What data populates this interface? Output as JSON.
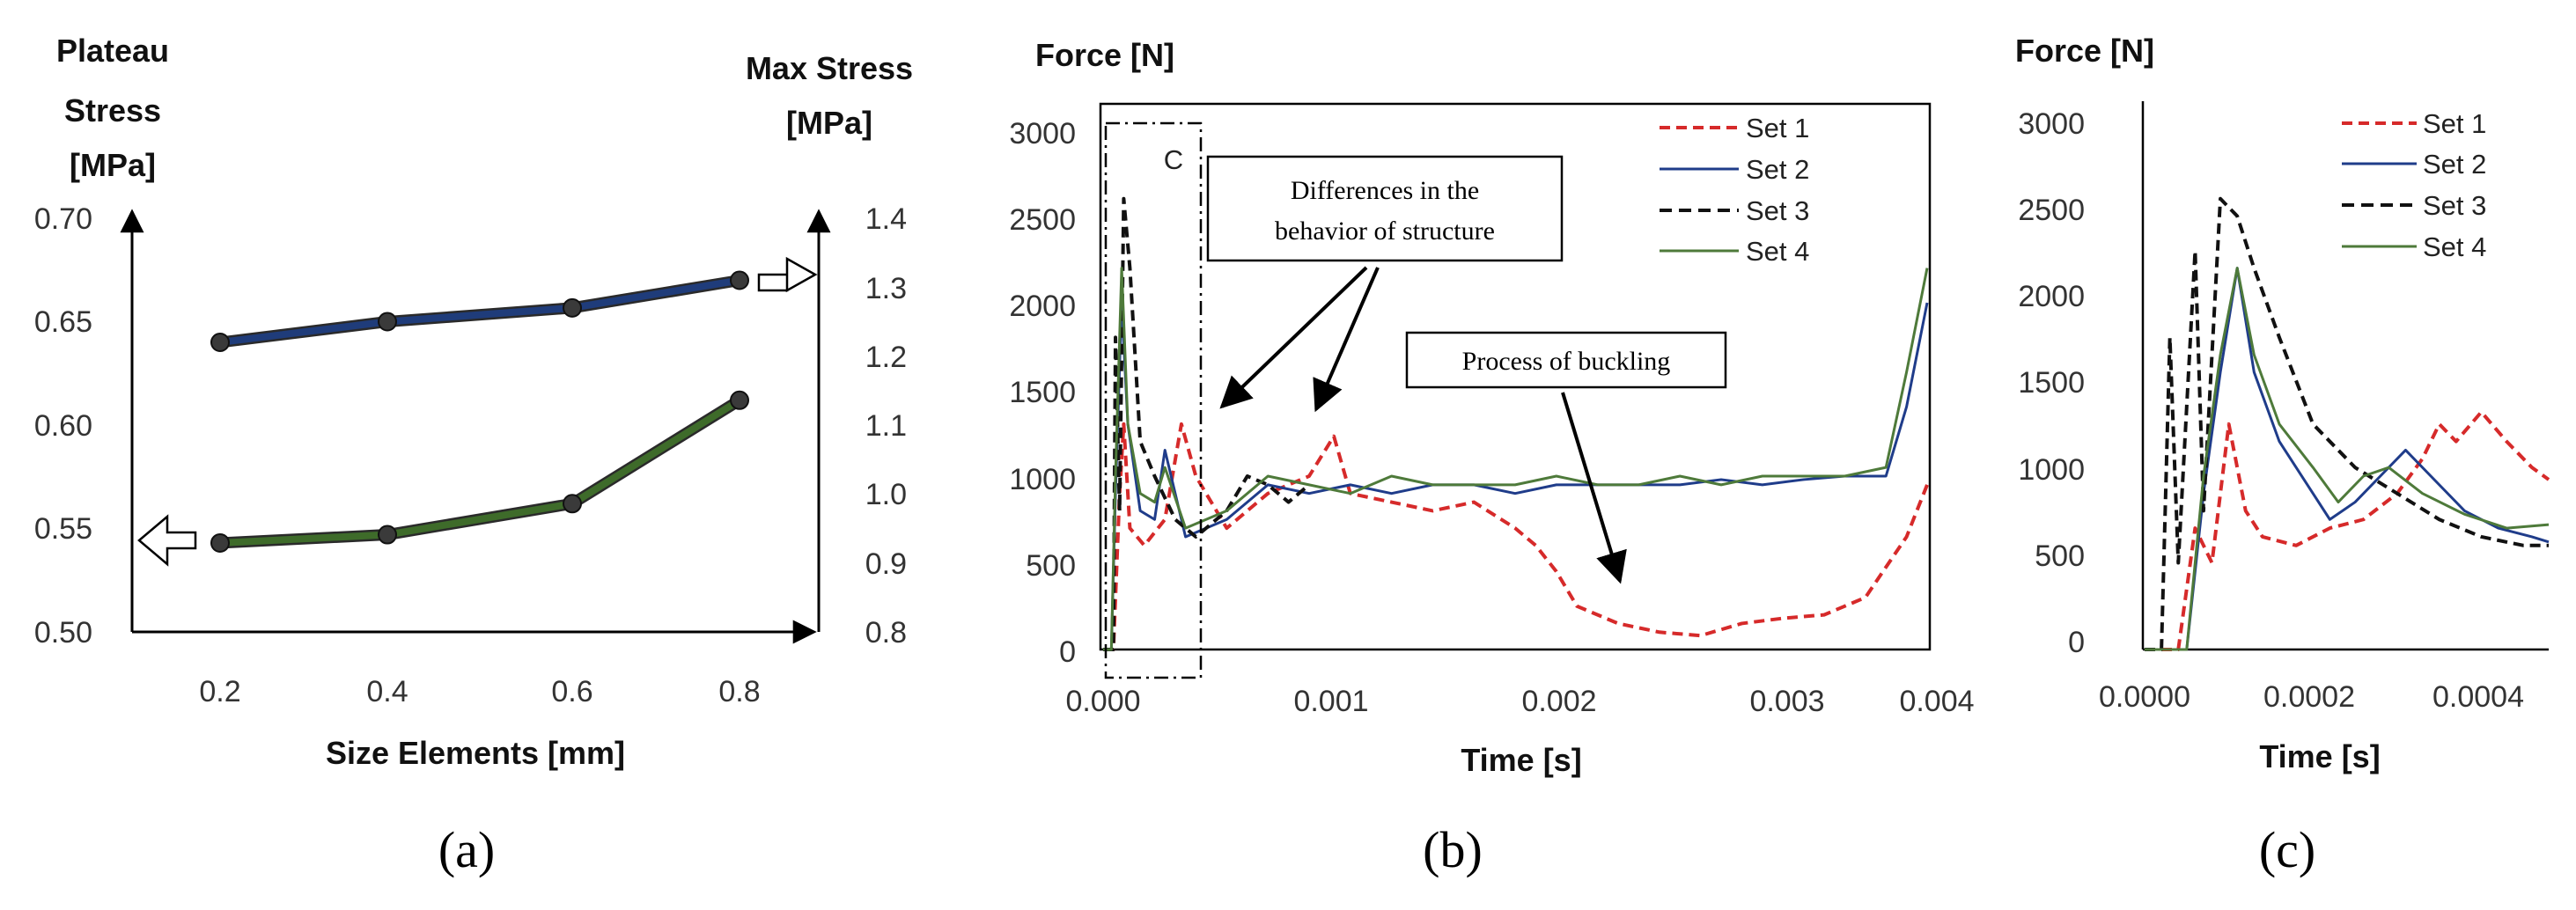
{
  "chart_data": [
    {
      "panel": "a",
      "panel_label": "(a)",
      "type": "line",
      "title": "",
      "xlabel": "Size Elements [mm]",
      "ylabel_left": [
        "Plateau",
        "Stress",
        "[MPa]"
      ],
      "ylabel_right": [
        "Max Stress",
        "[MPa]"
      ],
      "x": [
        0.2,
        0.4,
        0.6,
        0.8
      ],
      "x_ticks": [
        "0.2",
        "0.4",
        "0.6",
        "0.8"
      ],
      "ylim_left": [
        0.5,
        0.7
      ],
      "y_ticks_left": [
        "0.70",
        "0.65",
        "0.60",
        "0.55",
        "0.50"
      ],
      "ylim_right": [
        0.8,
        1.4
      ],
      "y_ticks_right": [
        "1.4",
        "1.3",
        "1.2",
        "1.1",
        "1.0",
        "0.9",
        "0.8"
      ],
      "series": [
        {
          "name": "Max Stress",
          "axis": "right",
          "color": "#1f3c7a",
          "values": [
            1.22,
            1.25,
            1.27,
            1.31
          ]
        },
        {
          "name": "Plateau Stress",
          "axis": "left",
          "color": "#3e6b2a",
          "values": [
            0.543,
            0.547,
            0.562,
            0.612
          ]
        }
      ]
    },
    {
      "panel": "b",
      "panel_label": "(b)",
      "type": "line",
      "xlabel": "Time [s]",
      "ylabel": "Force [N]",
      "xlim": [
        0,
        0.004
      ],
      "x_ticks": [
        "0.000",
        "0.001",
        "0.002",
        "0.003",
        "0.004"
      ],
      "ylim": [
        0,
        3000
      ],
      "y_ticks": [
        "3000",
        "2500",
        "2000",
        "1500",
        "1000",
        "500",
        "0"
      ],
      "zoom_box_label": "C",
      "annotations": [
        "Differences in the",
        "behavior of structure",
        "Process of buckling"
      ],
      "legend": [
        "Set 1",
        "Set 2",
        "Set 3",
        "Set 4"
      ],
      "series": [
        {
          "name": "Set 1",
          "color": "#d62a2a",
          "dash": "dashed",
          "points": [
            [
              0,
              0
            ],
            [
              5e-05,
              0
            ],
            [
              8e-05,
              900
            ],
            [
              0.0001,
              1300
            ],
            [
              0.00013,
              700
            ],
            [
              0.0002,
              600
            ],
            [
              0.0003,
              750
            ],
            [
              0.00038,
              1300
            ],
            [
              0.00045,
              1000
            ],
            [
              0.0006,
              700
            ],
            [
              0.0008,
              900
            ],
            [
              0.001,
              1000
            ],
            [
              0.00112,
              1230
            ],
            [
              0.0012,
              900
            ],
            [
              0.0014,
              850
            ],
            [
              0.0016,
              800
            ],
            [
              0.0018,
              850
            ],
            [
              0.002,
              700
            ],
            [
              0.0021,
              600
            ],
            [
              0.0022,
              450
            ],
            [
              0.0023,
              250
            ],
            [
              0.0025,
              150
            ],
            [
              0.0027,
              100
            ],
            [
              0.0029,
              80
            ],
            [
              0.0031,
              150
            ],
            [
              0.0033,
              180
            ],
            [
              0.0035,
              200
            ],
            [
              0.0037,
              300
            ],
            [
              0.0039,
              650
            ],
            [
              0.004,
              950
            ]
          ]
        },
        {
          "name": "Set 2",
          "color": "#1f3c8a",
          "dash": "solid",
          "points": [
            [
              0,
              0
            ],
            [
              4e-05,
              0
            ],
            [
              6e-05,
              900
            ],
            [
              9e-05,
              2000
            ],
            [
              0.00012,
              1300
            ],
            [
              0.00018,
              800
            ],
            [
              0.00025,
              750
            ],
            [
              0.0003,
              1150
            ],
            [
              0.0004,
              650
            ],
            [
              0.0006,
              750
            ],
            [
              0.0008,
              950
            ],
            [
              0.001,
              900
            ],
            [
              0.0012,
              950
            ],
            [
              0.0014,
              900
            ],
            [
              0.0016,
              950
            ],
            [
              0.0018,
              950
            ],
            [
              0.002,
              900
            ],
            [
              0.0022,
              950
            ],
            [
              0.0024,
              950
            ],
            [
              0.0026,
              950
            ],
            [
              0.0028,
              950
            ],
            [
              0.003,
              980
            ],
            [
              0.0032,
              950
            ],
            [
              0.0034,
              980
            ],
            [
              0.0036,
              1000
            ],
            [
              0.0038,
              1000
            ],
            [
              0.0039,
              1400
            ],
            [
              0.004,
              2000
            ]
          ]
        },
        {
          "name": "Set 3",
          "color": "#111111",
          "dash": "dashed",
          "points": [
            [
              0,
              0
            ],
            [
              5e-05,
              0
            ],
            [
              6e-05,
              1800
            ],
            [
              8e-05,
              800
            ],
            [
              0.0001,
              2600
            ],
            [
              0.00013,
              2200
            ],
            [
              0.00018,
              1200
            ],
            [
              0.00025,
              1000
            ],
            [
              0.00035,
              750
            ],
            [
              0.00045,
              650
            ],
            [
              0.0006,
              800
            ],
            [
              0.0007,
              1000
            ],
            [
              0.0008,
              950
            ],
            [
              0.0009,
              850
            ],
            [
              0.001,
              950
            ]
          ]
        },
        {
          "name": "Set 4",
          "color": "#4e7a3a",
          "dash": "solid",
          "points": [
            [
              0,
              0
            ],
            [
              4e-05,
              0
            ],
            [
              6e-05,
              1000
            ],
            [
              9e-05,
              2200
            ],
            [
              0.00012,
              1300
            ],
            [
              0.00018,
              900
            ],
            [
              0.00025,
              850
            ],
            [
              0.0003,
              1050
            ],
            [
              0.0004,
              700
            ],
            [
              0.0006,
              800
            ],
            [
              0.0008,
              1000
            ],
            [
              0.001,
              950
            ],
            [
              0.0012,
              900
            ],
            [
              0.0014,
              1000
            ],
            [
              0.0016,
              950
            ],
            [
              0.0018,
              950
            ],
            [
              0.002,
              950
            ],
            [
              0.0022,
              1000
            ],
            [
              0.0024,
              950
            ],
            [
              0.0026,
              950
            ],
            [
              0.0028,
              1000
            ],
            [
              0.003,
              950
            ],
            [
              0.0032,
              1000
            ],
            [
              0.0034,
              1000
            ],
            [
              0.0036,
              1000
            ],
            [
              0.0038,
              1050
            ],
            [
              0.0039,
              1600
            ],
            [
              0.004,
              2200
            ]
          ]
        }
      ]
    },
    {
      "panel": "c",
      "panel_label": "(c)",
      "type": "line",
      "xlabel": "Time [s]",
      "ylabel": "Force [N]",
      "xlim": [
        0,
        0.00048
      ],
      "x_ticks": [
        "0.0000",
        "0.0002",
        "0.0004"
      ],
      "x_tick_values": [
        0,
        0.0002,
        0.0004
      ],
      "ylim": [
        0,
        3000
      ],
      "y_ticks": [
        "3000",
        "2500",
        "2000",
        "1500",
        "1000",
        "500",
        "0"
      ],
      "legend": [
        "Set 1",
        "Set 2",
        "Set 3",
        "Set 4"
      ],
      "series": [
        {
          "name": "Set 1",
          "color": "#d62a2a",
          "dash": "dashed",
          "points": [
            [
              0,
              0
            ],
            [
              4e-05,
              0
            ],
            [
              6e-05,
              700
            ],
            [
              8e-05,
              500
            ],
            [
              0.0001,
              1300
            ],
            [
              0.00012,
              800
            ],
            [
              0.00014,
              650
            ],
            [
              0.00018,
              600
            ],
            [
              0.00022,
              700
            ],
            [
              0.00026,
              750
            ],
            [
              0.0003,
              900
            ],
            [
              0.00033,
              1100
            ],
            [
              0.00035,
              1300
            ],
            [
              0.00037,
              1200
            ],
            [
              0.0004,
              1370
            ],
            [
              0.00043,
              1200
            ],
            [
              0.00046,
              1050
            ],
            [
              0.00048,
              980
            ]
          ]
        },
        {
          "name": "Set 2",
          "color": "#1f3c8a",
          "dash": "solid",
          "points": [
            [
              0,
              0
            ],
            [
              5e-05,
              0
            ],
            [
              7e-05,
              900
            ],
            [
              9e-05,
              1600
            ],
            [
              0.00011,
              2200
            ],
            [
              0.00013,
              1600
            ],
            [
              0.00016,
              1200
            ],
            [
              0.0002,
              900
            ],
            [
              0.00022,
              750
            ],
            [
              0.00025,
              850
            ],
            [
              0.00028,
              1000
            ],
            [
              0.00031,
              1150
            ],
            [
              0.00034,
              1000
            ],
            [
              0.00038,
              800
            ],
            [
              0.00042,
              700
            ],
            [
              0.00046,
              650
            ],
            [
              0.00048,
              620
            ]
          ]
        },
        {
          "name": "Set 3",
          "color": "#111111",
          "dash": "dashed",
          "points": [
            [
              0,
              0
            ],
            [
              2e-05,
              0
            ],
            [
              3e-05,
              1800
            ],
            [
              4e-05,
              500
            ],
            [
              6e-05,
              2300
            ],
            [
              7e-05,
              800
            ],
            [
              9e-05,
              2600
            ],
            [
              0.00011,
              2500
            ],
            [
              0.00013,
              2200
            ],
            [
              0.00016,
              1800
            ],
            [
              0.0002,
              1300
            ],
            [
              0.00025,
              1050
            ],
            [
              0.0003,
              900
            ],
            [
              0.00035,
              750
            ],
            [
              0.0004,
              650
            ],
            [
              0.00045,
              600
            ],
            [
              0.00048,
              600
            ]
          ]
        },
        {
          "name": "Set 4",
          "color": "#4e7a3a",
          "dash": "solid",
          "points": [
            [
              0,
              0
            ],
            [
              5e-05,
              0
            ],
            [
              7e-05,
              1000
            ],
            [
              9e-05,
              1700
            ],
            [
              0.00011,
              2200
            ],
            [
              0.00013,
              1700
            ],
            [
              0.00016,
              1300
            ],
            [
              0.0002,
              1050
            ],
            [
              0.00023,
              850
            ],
            [
              0.00026,
              1000
            ],
            [
              0.00029,
              1050
            ],
            [
              0.00033,
              900
            ],
            [
              0.00038,
              780
            ],
            [
              0.00043,
              700
            ],
            [
              0.00048,
              720
            ]
          ]
        }
      ]
    }
  ]
}
